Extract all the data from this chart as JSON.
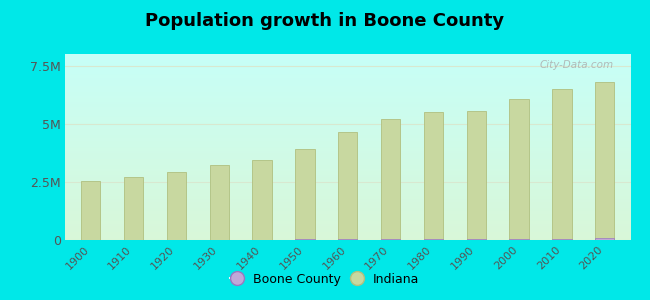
{
  "title": "Population growth in Boone County",
  "years": [
    1900,
    1910,
    1920,
    1930,
    1940,
    1950,
    1960,
    1970,
    1980,
    1990,
    2000,
    2010,
    2020
  ],
  "indiana_values": [
    2516462,
    2700876,
    2930390,
    3238503,
    3427796,
    3934224,
    4662498,
    5193669,
    5490224,
    5544159,
    6080485,
    6483802,
    6785528
  ],
  "boone_county_values": [
    14765,
    15696,
    17996,
    20242,
    20720,
    22482,
    27543,
    30870,
    36446,
    38147,
    46107,
    56640,
    67843
  ],
  "bar_color": "#c8d8a0",
  "bar_edge_color": "#b0c080",
  "boone_color": "#c0a8d8",
  "indiana_legend_color": "#c8d870",
  "background_top": "#c8fff8",
  "background_bottom": "#d8f8d0",
  "outer_background": "#00e8e8",
  "ylim": [
    0,
    8000000
  ],
  "yticks": [
    0,
    2500000,
    5000000,
    7500000
  ],
  "ytick_labels": [
    "0",
    "2.5M",
    "5M",
    "7.5M"
  ],
  "watermark": "City-Data.com",
  "legend_boone_label": "Boone County",
  "legend_indiana_label": "Indiana",
  "grid_color": "#d8e8d0"
}
